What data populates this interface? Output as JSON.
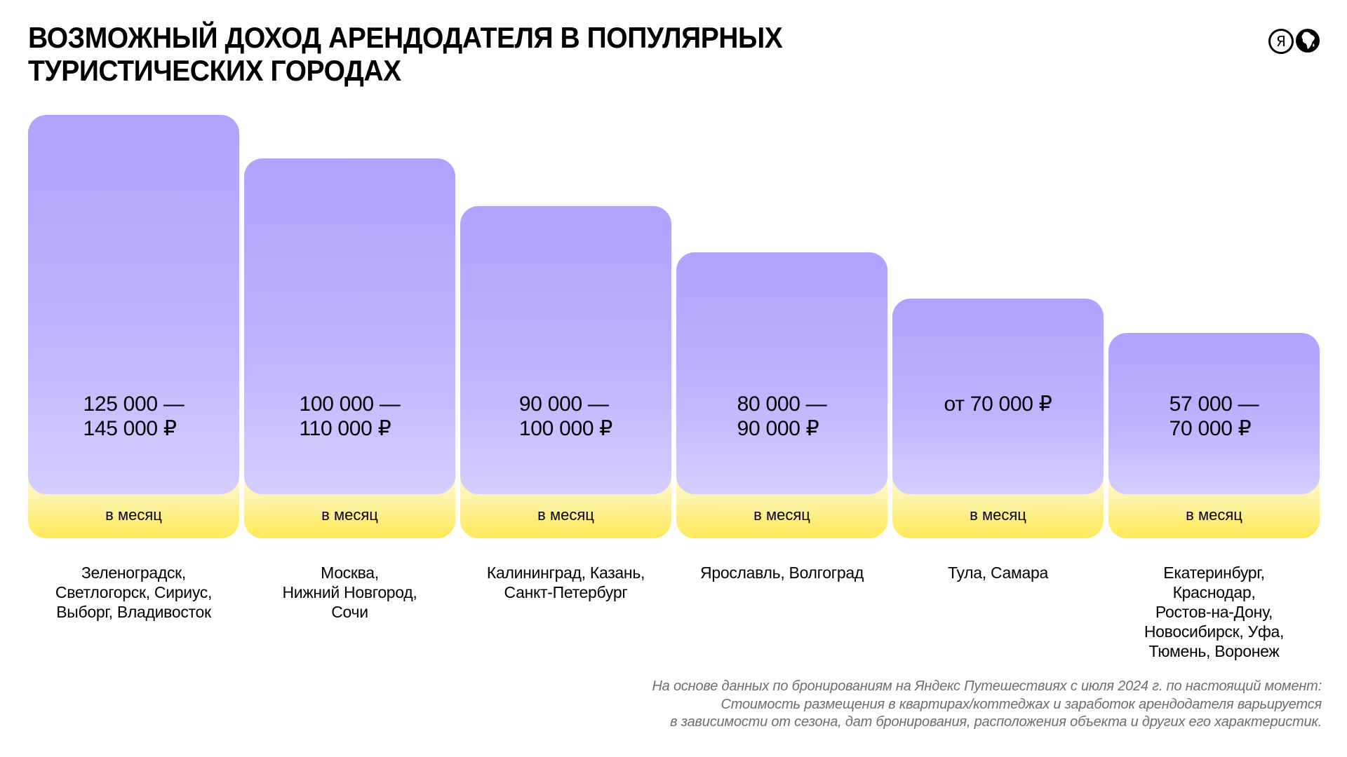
{
  "header": {
    "title_lines": [
      "ВОЗМОЖНЫЙ ДОХОД АРЕНДОДАТЕЛЯ В ПОПУЛЯРНЫХ",
      "ТУРИСТИЧЕСКИХ ГОРОДАХ"
    ],
    "logo_letter": "Я",
    "logo_icons": [
      "yandex-circle-icon",
      "globe-icon"
    ]
  },
  "colors": {
    "bar_top": "#b2a1fe",
    "bar_bottom": "#d6cdfe",
    "band_top": "#fffbe0",
    "band_bottom": "#ffe85a",
    "text": "#000000",
    "footnote": "#6e6e6e"
  },
  "chart_data": {
    "type": "bar",
    "title": "ВОЗМОЖНЫЙ ДОХОД АРЕНДОДАТЕЛЯ В ПОПУЛЯРНЫХ ТУРИСТИЧЕСКИХ ГОРОДАХ",
    "unit_label": "в месяц",
    "currency": "₽",
    "ylim": [
      0,
      145000
    ],
    "bars": [
      {
        "value_lines": [
          "125 000 —",
          "145 000 ₽"
        ],
        "min": 125000,
        "max": 145000,
        "unit": "в месяц",
        "cities": [
          "Зеленоградск,",
          "Светлогорск, Сириус,",
          "Выборг, Владивосток"
        ]
      },
      {
        "value_lines": [
          "100 000 —",
          "110 000 ₽"
        ],
        "min": 100000,
        "max": 110000,
        "unit": "в месяц",
        "cities": [
          "Москва,",
          "Нижний Новгород,",
          "Сочи"
        ]
      },
      {
        "value_lines": [
          "90 000 —",
          "100 000 ₽"
        ],
        "min": 90000,
        "max": 100000,
        "unit": "в месяц",
        "cities": [
          "Калининград, Казань,",
          "Санкт-Петербург"
        ]
      },
      {
        "value_lines": [
          "80 000 —",
          "90 000 ₽"
        ],
        "min": 80000,
        "max": 90000,
        "unit": "в месяц",
        "cities": [
          "Ярославль, Волгоград"
        ]
      },
      {
        "value_lines": [
          "от 70 000 ₽"
        ],
        "min": 70000,
        "max": null,
        "unit": "в месяц",
        "cities": [
          "Тула, Самара"
        ]
      },
      {
        "value_lines": [
          "57 000 —",
          "70 000 ₽"
        ],
        "min": 57000,
        "max": 70000,
        "unit": "в месяц",
        "cities": [
          "Екатеринбург,",
          "Краснодар,",
          "Ростов-на-Дону,",
          "Новосибирск, Уфа,",
          "Тюмень, Воронеж"
        ]
      }
    ],
    "bar_rank_heights": [
      1.0,
      0.885,
      0.76,
      0.638,
      0.516,
      0.426
    ]
  },
  "footnote": {
    "lines": [
      "На основе данных по бронированиям на Яндекс Путешествиях с июля 2024 г. по настоящий момент:",
      "Стоимость размещения в квартирах/коттеджах и заработок арендодателя варьируется",
      "в зависимости от сезона, дат бронирования, расположения объекта и других его характеристик."
    ]
  }
}
